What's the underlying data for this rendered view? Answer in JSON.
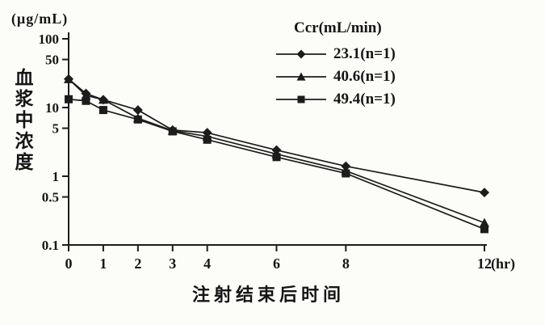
{
  "chart": {
    "unit_label": "(μg/mL)",
    "y_axis_label": "血浆中浓度",
    "x_axis_label": "注射结束后时间",
    "colors": {
      "line": "#1c1c1c",
      "text": "#151515",
      "background": "#fcfcf9"
    }
  },
  "chart_data": {
    "type": "line",
    "y_scale": "log",
    "grid": false,
    "x": [
      0,
      0.5,
      1,
      2,
      3,
      4,
      6,
      8,
      12
    ],
    "x_ticks": [
      0,
      1,
      2,
      3,
      4,
      6,
      8,
      12
    ],
    "x_unit": "(hr)",
    "xlim": [
      0,
      12
    ],
    "y_ticks": [
      100,
      50,
      10,
      5,
      1,
      0.5,
      0.1
    ],
    "ylim": [
      0.1,
      100
    ],
    "xlabel": "注射结束后时间",
    "ylabel": "血浆中浓度",
    "y_unit": "μg/mL",
    "legend": {
      "title": "Ccr(mL/min)",
      "position": "top-right"
    },
    "series": [
      {
        "name": "23.1(n=1)",
        "marker": "diamond",
        "values": [
          26,
          16,
          13,
          9.2,
          4.7,
          4.3,
          2.4,
          1.4,
          0.58
        ]
      },
      {
        "name": "40.6(n=1)",
        "marker": "triangle",
        "values": [
          26,
          15,
          13,
          7.0,
          4.6,
          3.8,
          2.1,
          1.2,
          0.21
        ]
      },
      {
        "name": "49.4(n=1)",
        "marker": "square",
        "values": [
          13.2,
          12.5,
          9.2,
          6.7,
          4.5,
          3.4,
          1.9,
          1.1,
          0.17
        ]
      }
    ]
  }
}
